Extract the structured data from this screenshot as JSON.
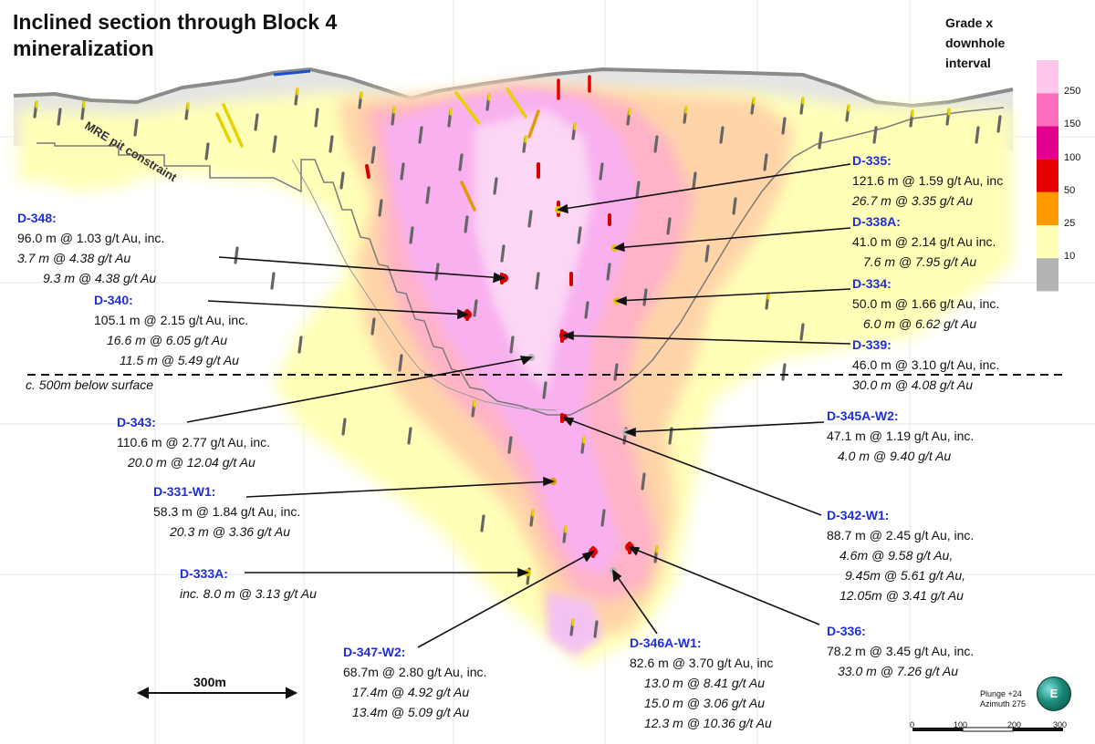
{
  "title": "Inclined section through Block 4 mineralization",
  "legend": {
    "title": "Grade x downhole interval",
    "classes": [
      {
        "label": "250",
        "color": "#ffc8ea"
      },
      {
        "label": "150",
        "color": "#ff6fbf"
      },
      {
        "label": "100",
        "color": "#e3008f"
      },
      {
        "label": "50",
        "color": "#e60000"
      },
      {
        "label": "25",
        "color": "#ff9a00"
      },
      {
        "label": "10",
        "color": "#ffffb8"
      },
      {
        "label": "",
        "color": "#b4b4b4"
      }
    ]
  },
  "pit_label": "MRE pit constraint",
  "depth_label": "c. 500m below surface",
  "scale_bar_label": "300m",
  "orientation": {
    "plunge": "Plunge +24",
    "azimuth": "Azimuth 275",
    "compass_letter": "E"
  },
  "scale_ticks": [
    "0",
    "100",
    "200",
    "300"
  ],
  "holes": [
    {
      "id": "D-348:",
      "lines": [
        "96.0 m @ 1.03 g/t Au, inc.",
        "3.7 m @ 4.38 g/t Au",
        "9.3 m @ 4.38 g/t Au"
      ]
    },
    {
      "id": "D-340:",
      "lines": [
        "105.1 m @ 2.15 g/t Au, inc.",
        "16.6 m @ 6.05 g/t Au",
        "11.5 m @ 5.49 g/t Au"
      ]
    },
    {
      "id": "D-343:",
      "lines": [
        "110.6 m @ 2.77 g/t Au, inc.",
        "20.0 m @ 12.04 g/t Au"
      ]
    },
    {
      "id": "D-331-W1:",
      "lines": [
        "58.3 m @ 1.84 g/t Au, inc.",
        "20.3 m @ 3.36 g/t Au"
      ]
    },
    {
      "id": "D-333A:",
      "lines": [
        "inc. 8.0 m @ 3.13 g/t Au"
      ]
    },
    {
      "id": "D-347-W2:",
      "lines": [
        "68.7m @ 2.80 g/t Au, inc.",
        "17.4m @ 4.92 g/t Au",
        "13.4m @ 5.09 g/t Au"
      ]
    },
    {
      "id": "D-346A-W1:",
      "lines": [
        "82.6 m @ 3.70 g/t Au, inc",
        "13.0 m @ 8.41 g/t Au",
        "15.0 m @ 3.06 g/t Au",
        "12.3 m @ 10.36 g/t Au"
      ]
    },
    {
      "id": "D-336:",
      "lines": [
        "78.2 m @ 3.45 g/t Au, inc.",
        "33.0 m @ 7.26 g/t Au"
      ]
    },
    {
      "id": "D-342-W1:",
      "lines": [
        "88.7 m @ 2.45 g/t Au, inc.",
        "4.6m @ 9.58 g/t Au,",
        "9.45m @ 5.61 g/t Au,",
        "12.05m @ 3.41 g/t Au"
      ]
    },
    {
      "id": "D-345A-W2:",
      "lines": [
        "47.1 m @ 1.19 g/t Au, inc.",
        "4.0 m @ 9.40 g/t Au"
      ]
    },
    {
      "id": "D-339:",
      "lines": [
        "46.0 m @ 3.10 g/t Au, inc.",
        "30.0 m @ 4.08 g/t Au"
      ]
    },
    {
      "id": "D-334:",
      "lines": [
        "50.0 m @ 1.66 g/t Au, inc.",
        "6.0 m @ 6.62 g/t Au"
      ]
    },
    {
      "id": "D-338A:",
      "lines": [
        "41.0 m @ 2.14 g/t Au inc.",
        "7.6 m @ 7.95 g/t Au"
      ]
    },
    {
      "id": "D-335:",
      "lines": [
        "121.6 m @ 1.59 g/t Au, inc",
        "26.7 m @ 3.35 g/t Au"
      ]
    }
  ]
}
